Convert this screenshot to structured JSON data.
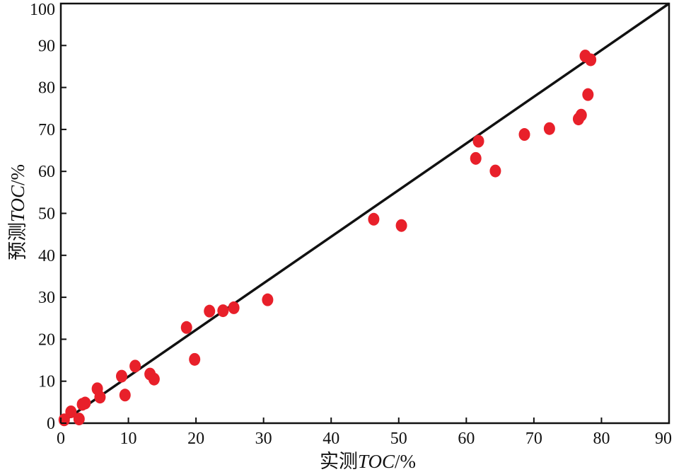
{
  "chart_data": {
    "type": "scatter",
    "title": "",
    "xlabel_prefix": "实测",
    "xlabel_var": "TOC",
    "xlabel_unit": "/%",
    "ylabel_prefix": "预测",
    "ylabel_var": "TOC",
    "ylabel_unit": "/%",
    "xlim": [
      0,
      90
    ],
    "ylim": [
      0,
      100
    ],
    "xticks": [
      0,
      10,
      20,
      30,
      40,
      50,
      60,
      70,
      80,
      90
    ],
    "yticks": [
      0,
      10,
      20,
      30,
      40,
      50,
      60,
      70,
      80,
      90,
      100
    ],
    "grid": false,
    "point_color": "#e8202a",
    "line_color": "#111111",
    "reference_line": {
      "x": [
        0,
        90
      ],
      "y": [
        0,
        100
      ]
    },
    "series": [
      {
        "points": [
          [
            0.5,
            0.8
          ],
          [
            1.5,
            2.7
          ],
          [
            2.7,
            1.0
          ],
          [
            3.2,
            4.5
          ],
          [
            3.6,
            4.8
          ],
          [
            5.4,
            8.2
          ],
          [
            5.8,
            6.2
          ],
          [
            9.0,
            11.2
          ],
          [
            9.5,
            6.7
          ],
          [
            11.0,
            13.6
          ],
          [
            13.2,
            11.7
          ],
          [
            13.8,
            10.5
          ],
          [
            18.6,
            22.8
          ],
          [
            19.8,
            15.2
          ],
          [
            22.0,
            26.7
          ],
          [
            24.0,
            26.8
          ],
          [
            25.6,
            27.5
          ],
          [
            30.6,
            29.4
          ],
          [
            46.3,
            48.6
          ],
          [
            50.4,
            47.1
          ],
          [
            61.4,
            63.1
          ],
          [
            61.8,
            67.2
          ],
          [
            64.3,
            60.1
          ],
          [
            68.6,
            68.8
          ],
          [
            72.3,
            70.2
          ],
          [
            76.6,
            72.5
          ],
          [
            77.0,
            73.4
          ],
          [
            77.6,
            87.5
          ],
          [
            78.0,
            78.3
          ],
          [
            78.4,
            86.6
          ]
        ]
      }
    ]
  }
}
